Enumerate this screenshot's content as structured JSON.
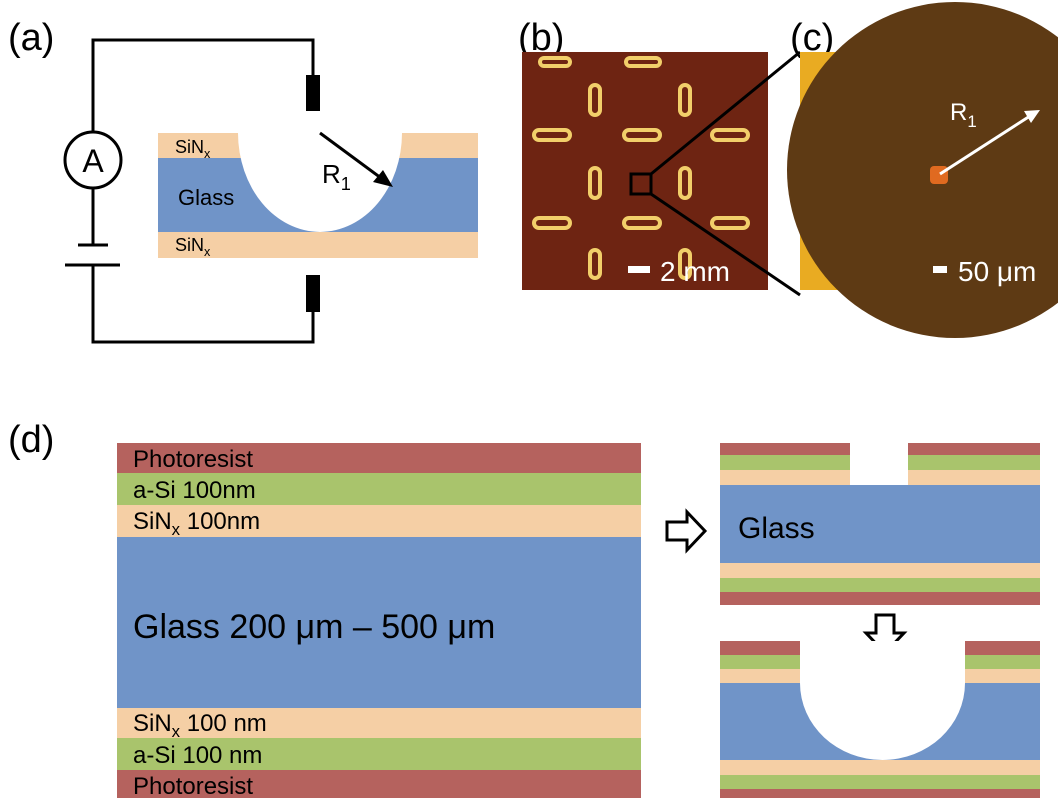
{
  "panels": {
    "a": "(a)",
    "b": "(b)",
    "c": "(c)",
    "d": "(d)"
  },
  "a": {
    "ammeter": "A",
    "top_layer": {
      "base": "SiN",
      "sub": "x"
    },
    "middle_layer": "Glass",
    "bottom_layer": {
      "base": "SiN",
      "sub": "x"
    },
    "radius": {
      "base": "R",
      "sub": "1"
    }
  },
  "b": {
    "scale": "2 mm"
  },
  "c": {
    "radius": {
      "base": "R",
      "sub": "1"
    },
    "scale": "50 μm"
  },
  "d": {
    "stack": {
      "top_resist": "Photoresist",
      "top_asi": "a-Si 100nm",
      "top_sin": {
        "base": "SiN",
        "sub": "x",
        "rest": " 100nm"
      },
      "glass": "Glass 200 μm – 500 μm",
      "bottom_sin": {
        "base": "SiN",
        "sub": "x",
        "rest": " 100 nm"
      },
      "bottom_asi": "a-Si 100 nm",
      "bottom_resist": "Photoresist"
    },
    "etched_glass": "Glass"
  }
}
